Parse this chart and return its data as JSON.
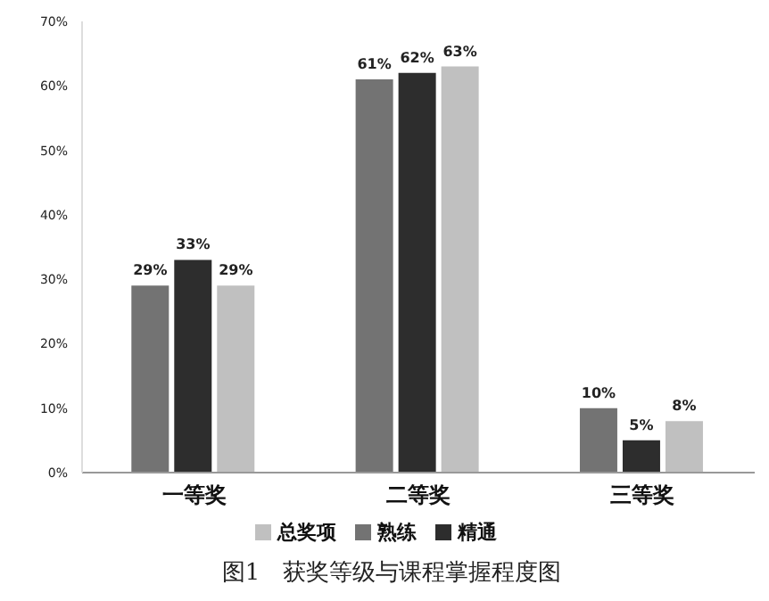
{
  "chart_data": {
    "type": "bar",
    "title": "图1　获奖等级与课程掌握程度图",
    "categories": [
      "一等奖",
      "二等奖",
      "三等奖"
    ],
    "series": [
      {
        "name": "熟练",
        "color": "#737373",
        "values": [
          29,
          61,
          10
        ],
        "value_labels": [
          "29%",
          "61%",
          "10%"
        ]
      },
      {
        "name": "精通",
        "color": "#2d2d2d",
        "values": [
          33,
          62,
          5
        ],
        "value_labels": [
          "33%",
          "62%",
          "5%"
        ]
      },
      {
        "name": "总奖项",
        "color": "#c0c0c0",
        "values": [
          29,
          63,
          8
        ],
        "value_labels": [
          "29%",
          "63%",
          "8%"
        ]
      }
    ],
    "ylim": [
      0,
      70
    ],
    "yticks": [
      {
        "value": 0,
        "label": "0%"
      },
      {
        "value": 10,
        "label": "10%"
      },
      {
        "value": 20,
        "label": "20%"
      },
      {
        "value": 30,
        "label": "30%"
      },
      {
        "value": 40,
        "label": "40%"
      },
      {
        "value": 50,
        "label": "50%"
      },
      {
        "value": 60,
        "label": "60%"
      },
      {
        "value": 70,
        "label": "70%"
      }
    ],
    "grid": false,
    "legend": "bottom"
  }
}
